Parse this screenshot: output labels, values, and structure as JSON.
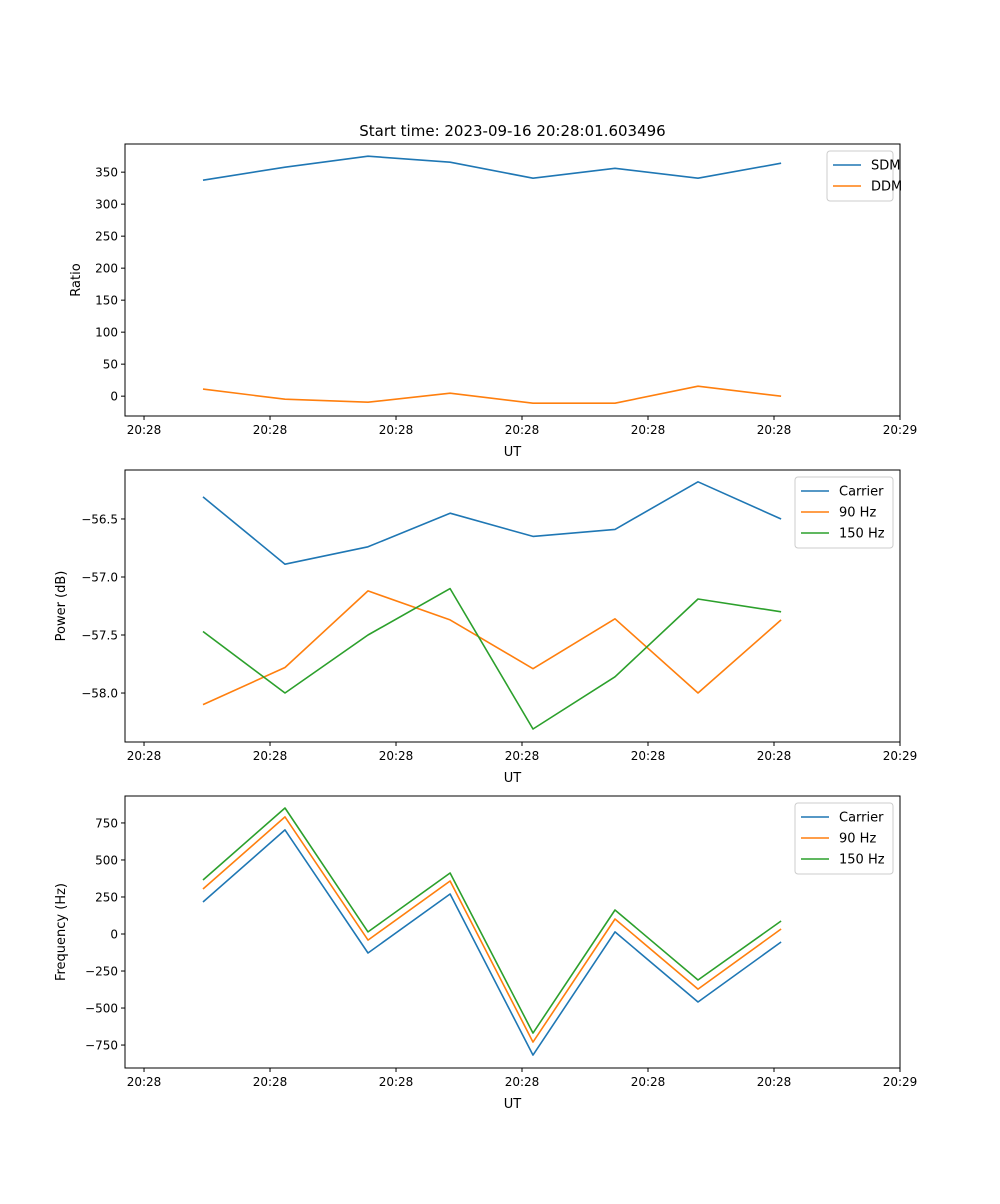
{
  "chart_data": [
    {
      "type": "line",
      "title": "Start time: 2023-09-16 20:28:01.603496",
      "xlabel": "UT",
      "ylabel": "Ratio",
      "x": [
        0.468,
        1.119,
        1.778,
        2.429,
        3.087,
        3.738,
        4.397,
        5.056
      ],
      "xlim": [
        -0.151,
        6.0
      ],
      "xticks": [
        0,
        1,
        2,
        3,
        4,
        5,
        6
      ],
      "xtick_labels": [
        "20:28",
        "20:28",
        "20:28",
        "20:28",
        "20:28",
        "20:28",
        "20:29"
      ],
      "ylim": [
        -31,
        394
      ],
      "yticks": [
        0,
        50,
        100,
        150,
        200,
        250,
        300,
        350
      ],
      "ytick_labels": [
        "0",
        "50",
        "100",
        "150",
        "200",
        "250",
        "300",
        "350"
      ],
      "legend": "top-right",
      "series": [
        {
          "name": "SDM",
          "color": "#1f77b4",
          "values": [
            337.5,
            357.8,
            375,
            365.6,
            340.6,
            356,
            340.6,
            364
          ]
        },
        {
          "name": "DDM",
          "color": "#ff7f0e",
          "values": [
            11,
            -4.7,
            -9.4,
            4.7,
            -11,
            -11,
            15.6,
            0
          ]
        }
      ]
    },
    {
      "type": "line",
      "title": "",
      "xlabel": "UT",
      "ylabel": "Power (dB)",
      "x": [
        0.468,
        1.119,
        1.778,
        2.429,
        3.087,
        3.738,
        4.397,
        5.056
      ],
      "xlim": [
        -0.151,
        6.0
      ],
      "xticks": [
        0,
        1,
        2,
        3,
        4,
        5,
        6
      ],
      "xtick_labels": [
        "20:28",
        "20:28",
        "20:28",
        "20:28",
        "20:28",
        "20:28",
        "20:29"
      ],
      "ylim": [
        -58.422,
        -56.078
      ],
      "yticks": [
        -58.0,
        -57.5,
        -57.0,
        -56.5
      ],
      "ytick_labels": [
        "−58.0",
        "−57.5",
        "−57.0",
        "−56.5"
      ],
      "legend": "top-right",
      "series": [
        {
          "name": "Carrier",
          "color": "#1f77b4",
          "values": [
            -56.31,
            -56.89,
            -56.74,
            -56.45,
            -56.65,
            -56.59,
            -56.18,
            -56.5
          ]
        },
        {
          "name": "90 Hz",
          "color": "#ff7f0e",
          "values": [
            -58.1,
            -57.78,
            -57.12,
            -57.37,
            -57.79,
            -57.36,
            -58.0,
            -57.37
          ]
        },
        {
          "name": "150 Hz",
          "color": "#2ca02c",
          "values": [
            -57.47,
            -58.0,
            -57.5,
            -57.1,
            -58.31,
            -57.86,
            -57.19,
            -57.3
          ]
        }
      ]
    },
    {
      "type": "line",
      "title": "",
      "xlabel": "UT",
      "ylabel": "Frequency (Hz)",
      "x": [
        0.468,
        1.119,
        1.778,
        2.429,
        3.087,
        3.738,
        4.397,
        5.056
      ],
      "xlim": [
        -0.151,
        6.0
      ],
      "xticks": [
        0,
        1,
        2,
        3,
        4,
        5,
        6
      ],
      "xtick_labels": [
        "20:28",
        "20:28",
        "20:28",
        "20:28",
        "20:28",
        "20:28",
        "20:29"
      ],
      "ylim": [
        -905,
        932
      ],
      "yticks": [
        -750,
        -500,
        -250,
        0,
        250,
        500,
        750
      ],
      "ytick_labels": [
        "−750",
        "−500",
        "−250",
        "0",
        "250",
        "500",
        "750"
      ],
      "legend": "top-right",
      "series": [
        {
          "name": "Carrier",
          "color": "#1f77b4",
          "values": [
            216,
            703,
            -128,
            270,
            -818,
            14,
            -459,
            -54
          ]
        },
        {
          "name": "90 Hz",
          "color": "#ff7f0e",
          "values": [
            304,
            791,
            -41,
            358,
            -730,
            101,
            -372,
            34
          ]
        },
        {
          "name": "150 Hz",
          "color": "#2ca02c",
          "values": [
            365,
            851,
            14,
            412,
            -669,
            162,
            -311,
            88
          ]
        }
      ]
    }
  ]
}
